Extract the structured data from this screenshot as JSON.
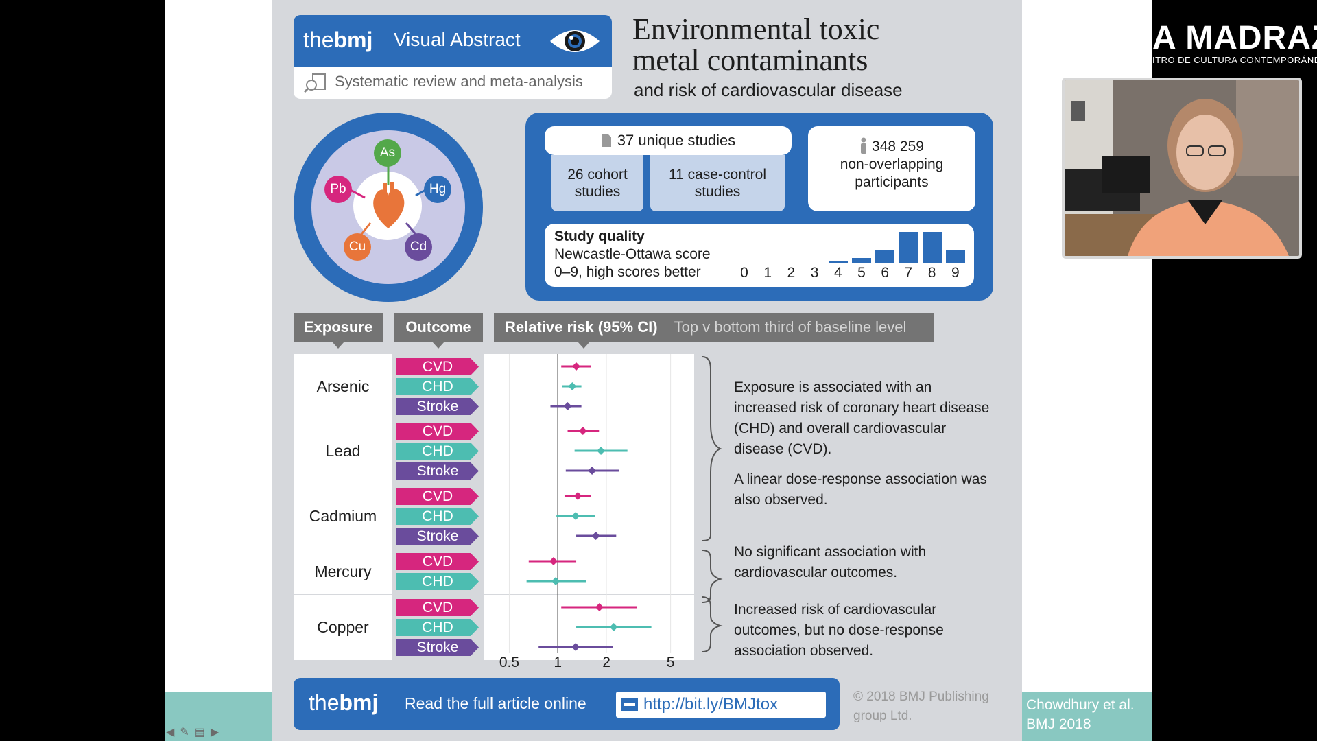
{
  "abstract": {
    "logo_the": "the",
    "logo_bmj": "bmj",
    "header_title": "Visual Abstract",
    "header_sub": "Systematic review and meta-analysis",
    "title_main": "Environmental toxic metal contaminants",
    "title_sub": "and risk of cardiovascular disease",
    "metals": [
      "As",
      "Hg",
      "Cd",
      "Cu",
      "Pb"
    ],
    "studies_total": "37 unique studies",
    "cohort": "26 cohort studies",
    "case_control": "11 case-control studies",
    "participants_num": "348 259",
    "participants_label": "non-overlapping participants",
    "quality_title": "Study quality",
    "quality_line1": "Newcastle-Ottawa score",
    "quality_line2": "0–9, high scores better",
    "quality_scores": [
      "0",
      "1",
      "2",
      "3",
      "4",
      "5",
      "6",
      "7",
      "8",
      "9"
    ],
    "quality_bar_values": [
      0,
      0,
      0,
      0,
      1,
      2,
      5,
      12,
      12,
      5
    ],
    "col_exposure": "Exposure",
    "col_outcome": "Outcome",
    "col_rr": "Relative risk (95% CI)",
    "col_rr_note": "Top v bottom third of baseline level",
    "exposures": [
      "Arsenic",
      "Lead",
      "Cadmium",
      "Mercury",
      "Copper"
    ],
    "note1": "Exposure is associated with an increased risk of coronary heart disease (CHD) and overall cardiovascular disease (CVD).",
    "note2": "A linear dose-response association was also observed.",
    "note3": "No significant association with cardiovascular outcomes.",
    "note4": "Increased risk of cardiovascular outcomes, but no dose-response association observed.",
    "axis_ticks": [
      "0.5",
      "1",
      "2",
      "5"
    ],
    "footer_read": "Read the full article online",
    "footer_url": "http://bit.ly/BMJtox",
    "copyright": "© 2018 BMJ Publishing group Ltd.",
    "colors": {
      "blue": "#2c6cb8",
      "cvd": "#d6267e",
      "chd": "#4dbdb1",
      "stroke": "#6a4c9c",
      "panel": "#d6d8dc"
    }
  },
  "chart_data": {
    "type": "scatter",
    "title": "Relative risk (95% CI)",
    "xlabel": "",
    "xscale": "log",
    "xlim": [
      0.35,
      7
    ],
    "xticks": [
      0.5,
      1,
      2,
      5
    ],
    "reference_line": 1,
    "groups": [
      {
        "exposure": "Arsenic",
        "rows": [
          {
            "outcome": "CVD",
            "rr": 1.3,
            "lo": 1.05,
            "hi": 1.6
          },
          {
            "outcome": "CHD",
            "rr": 1.23,
            "lo": 1.06,
            "hi": 1.4
          },
          {
            "outcome": "Stroke",
            "rr": 1.15,
            "lo": 0.9,
            "hi": 1.4
          }
        ]
      },
      {
        "exposure": "Lead",
        "rows": [
          {
            "outcome": "CVD",
            "rr": 1.43,
            "lo": 1.15,
            "hi": 1.8
          },
          {
            "outcome": "CHD",
            "rr": 1.85,
            "lo": 1.27,
            "hi": 2.7
          },
          {
            "outcome": "Stroke",
            "rr": 1.63,
            "lo": 1.12,
            "hi": 2.4
          }
        ]
      },
      {
        "exposure": "Cadmium",
        "rows": [
          {
            "outcome": "CVD",
            "rr": 1.33,
            "lo": 1.1,
            "hi": 1.6
          },
          {
            "outcome": "CHD",
            "rr": 1.29,
            "lo": 0.98,
            "hi": 1.7
          },
          {
            "outcome": "Stroke",
            "rr": 1.72,
            "lo": 1.3,
            "hi": 2.3
          }
        ]
      },
      {
        "exposure": "Mercury",
        "rows": [
          {
            "outcome": "CVD",
            "rr": 0.94,
            "lo": 0.66,
            "hi": 1.3
          },
          {
            "outcome": "CHD",
            "rr": 0.97,
            "lo": 0.64,
            "hi": 1.5
          }
        ]
      },
      {
        "exposure": "Copper",
        "rows": [
          {
            "outcome": "CVD",
            "rr": 1.81,
            "lo": 1.05,
            "hi": 3.1
          },
          {
            "outcome": "CHD",
            "rr": 2.22,
            "lo": 1.3,
            "hi": 3.8
          },
          {
            "outcome": "Stroke",
            "rr": 1.29,
            "lo": 0.76,
            "hi": 2.2
          }
        ]
      }
    ]
  },
  "slide": {
    "citation": "Chowdhury et al. BMJ 2018",
    "nav": [
      "◀",
      "✎",
      "▤",
      "▶"
    ]
  },
  "broadcast": {
    "logo": "A MADRAZA",
    "logo_sub": "ITRO DE CULTURA CONTEMPORÁNEA"
  }
}
